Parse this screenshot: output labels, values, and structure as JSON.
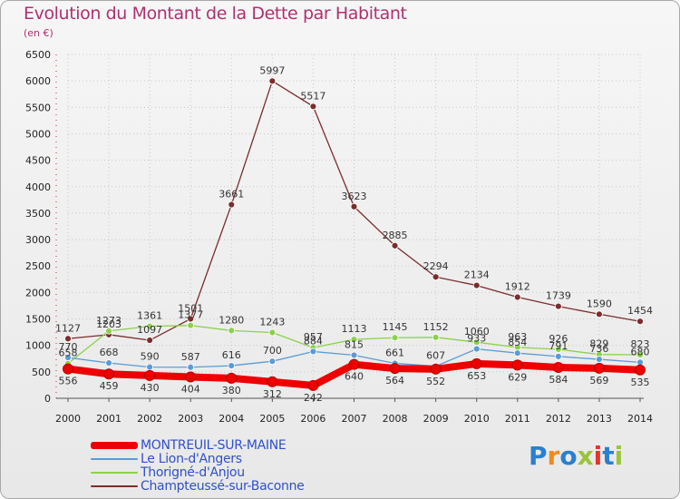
{
  "title": "Evolution du Montant de la Dette par Habitant",
  "unit": "(en €)",
  "logo": "Proxiti",
  "chart_data": {
    "type": "line",
    "x": [
      "2000",
      "2001",
      "2002",
      "2003",
      "2004",
      "2005",
      "2006",
      "2007",
      "2008",
      "2009",
      "2010",
      "2011",
      "2012",
      "2013",
      "2014"
    ],
    "yticks": [
      0,
      500,
      1000,
      1500,
      2000,
      2500,
      3000,
      3500,
      4000,
      4500,
      5000,
      5500,
      6000,
      6500
    ],
    "ylim": [
      0,
      6500
    ],
    "series": [
      {
        "name": "MONTREUIL-SUR-MAINE",
        "color": "#ee0000",
        "labels": false,
        "values": [
          556,
          459,
          430,
          404,
          380,
          312,
          242,
          640,
          564,
          552,
          653,
          629,
          584,
          569,
          535
        ]
      },
      {
        "name": "Le Lion-d'Angers",
        "color": "#5b9bd5",
        "labels": true,
        "values": [
          770,
          668,
          590,
          587,
          616,
          700,
          884,
          815,
          661,
          607,
          933,
          854,
          791,
          736,
          680
        ]
      },
      {
        "name": "Thorigné-d'Anjou",
        "color": "#8cd14a",
        "labels": true,
        "values": [
          658,
          1273,
          1361,
          1377,
          1280,
          1243,
          957,
          1113,
          1145,
          1152,
          1060,
          963,
          926,
          829,
          823
        ]
      },
      {
        "name": "Champteussé-sur-Baconne",
        "color": "#7b2c2c",
        "labels": true,
        "values": [
          1127,
          1203,
          1097,
          1501,
          3661,
          5997,
          5517,
          3623,
          2885,
          2294,
          2134,
          1912,
          1739,
          1590,
          1454
        ]
      }
    ]
  }
}
